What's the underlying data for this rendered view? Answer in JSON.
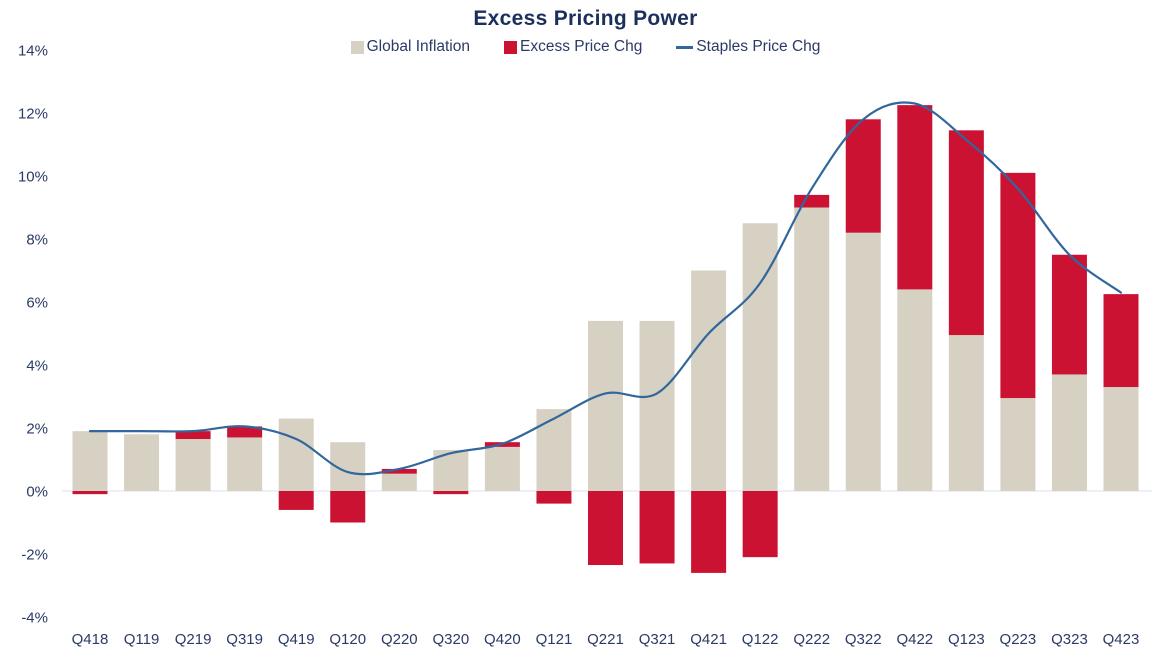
{
  "chart_data": {
    "type": "bar",
    "title": "Excess Pricing Power",
    "xlabel": "",
    "ylabel": "",
    "ylim": [
      -4,
      14
    ],
    "grid": false,
    "zero_line": true,
    "legend_position": "top",
    "categories": [
      "Q418",
      "Q119",
      "Q219",
      "Q319",
      "Q419",
      "Q120",
      "Q220",
      "Q320",
      "Q420",
      "Q121",
      "Q221",
      "Q321",
      "Q421",
      "Q122",
      "Q222",
      "Q322",
      "Q422",
      "Q123",
      "Q223",
      "Q323",
      "Q423"
    ],
    "y_ticks": [
      "14%",
      "12%",
      "10%",
      "8%",
      "6%",
      "4%",
      "2%",
      "0%",
      "-2%",
      "-4%"
    ],
    "y_tick_values": [
      14,
      12,
      10,
      8,
      6,
      4,
      2,
      0,
      -2,
      -4
    ],
    "series": [
      {
        "name": "Global Inflation",
        "type": "bar",
        "color": "#d6d1c2",
        "values": [
          1.9,
          1.8,
          1.65,
          1.7,
          2.3,
          1.55,
          0.55,
          1.3,
          1.4,
          2.6,
          5.4,
          5.4,
          7.0,
          8.5,
          9.0,
          8.2,
          6.4,
          4.95,
          2.95,
          3.7,
          3.3
        ]
      },
      {
        "name": "Excess Price Chg",
        "type": "bar-stacked",
        "color": "#cb1233",
        "values": [
          -0.1,
          0.0,
          0.25,
          0.35,
          -0.6,
          -1.0,
          0.15,
          -0.1,
          0.15,
          -0.4,
          -2.35,
          -2.3,
          -2.6,
          -2.1,
          0.4,
          3.6,
          5.85,
          6.5,
          7.15,
          3.8,
          2.95
        ]
      },
      {
        "name": "Staples Price Chg",
        "type": "line",
        "color": "#31679c",
        "values": [
          1.9,
          1.9,
          1.9,
          2.05,
          1.65,
          0.6,
          0.7,
          1.2,
          1.5,
          2.3,
          3.1,
          3.1,
          5.0,
          6.6,
          9.6,
          11.8,
          12.3,
          11.15,
          9.6,
          7.5,
          6.3
        ]
      }
    ]
  },
  "colors": {
    "title_text": "#1b2f5e",
    "axis_text": "#2b3a66",
    "zero_line": "#eceaf2",
    "background": "#ffffff"
  }
}
